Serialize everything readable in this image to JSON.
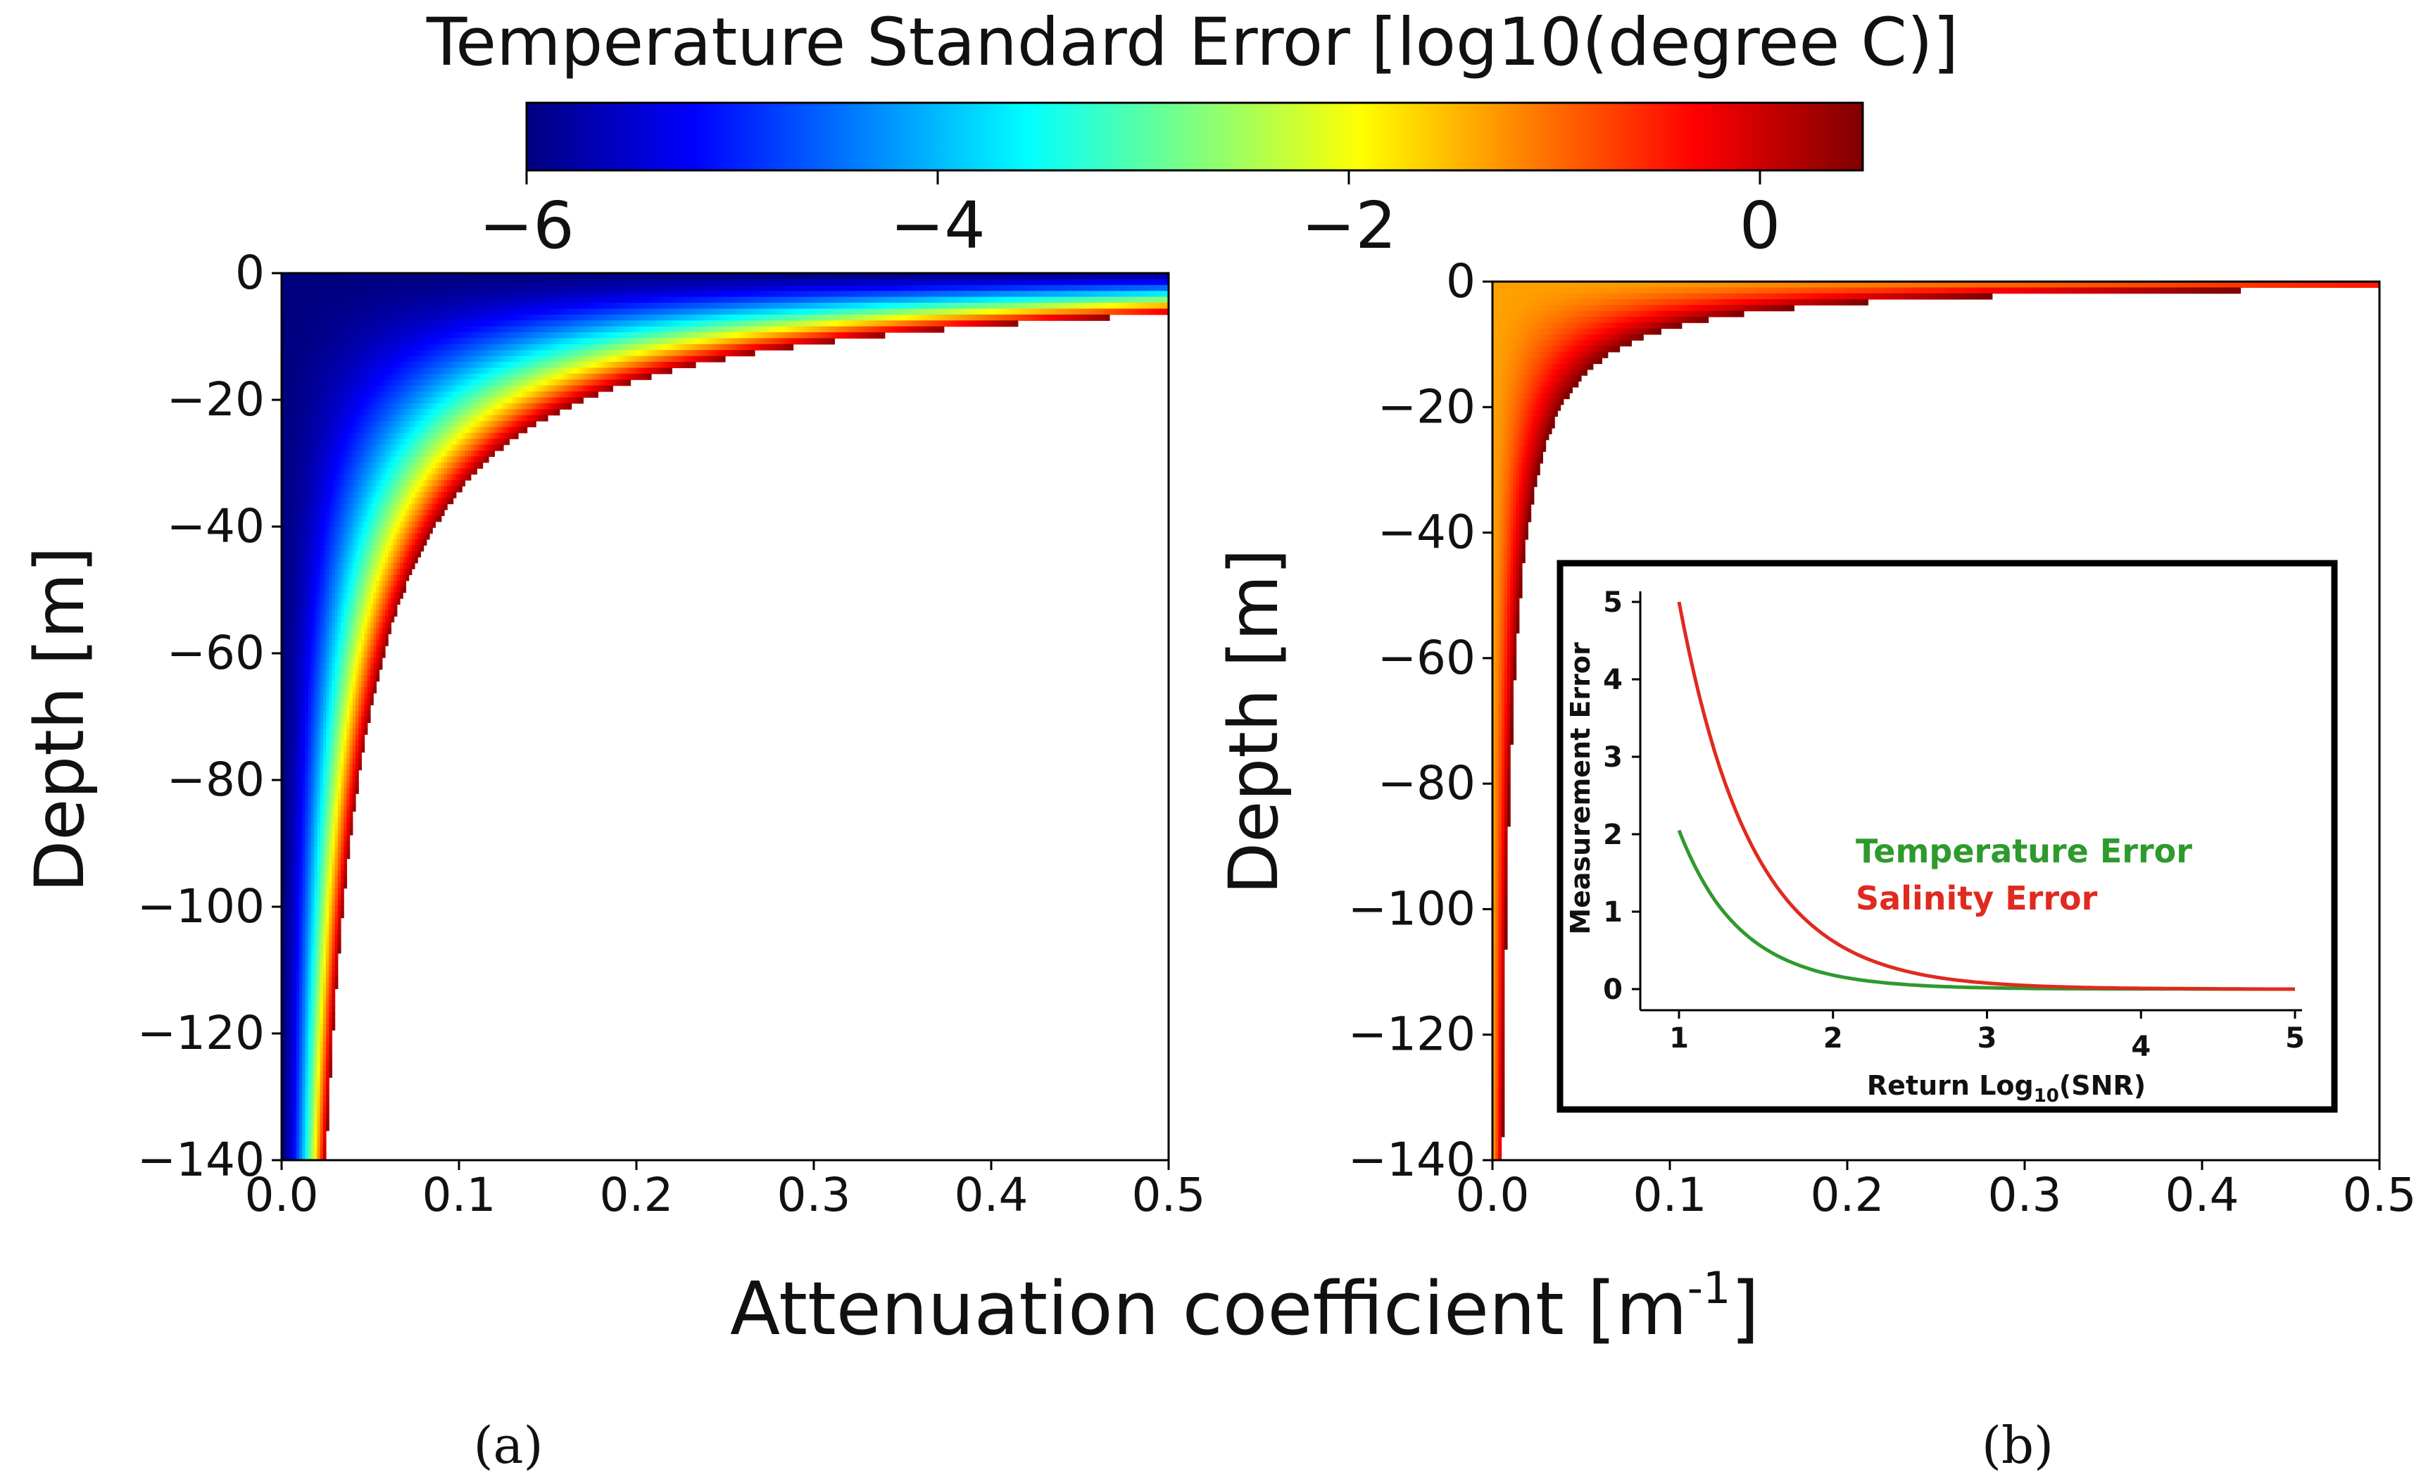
{
  "colors": {
    "temperature": "#2e9a2e",
    "salinity": "#e02a1f",
    "colormap": [
      "#00007f",
      "#0000ff",
      "#007fff",
      "#00ffff",
      "#7fff7f",
      "#ffff00",
      "#ff7f00",
      "#ff0000",
      "#7f0000"
    ]
  },
  "chart_data": [
    {
      "id": "colorbar",
      "type": "heatmap",
      "title": "Temperature Standard Error [log10(degree C)]",
      "range": [
        -6,
        0.5
      ],
      "ticks": [
        "−6",
        "−4",
        "−2",
        "0"
      ],
      "tick_values": [
        -6,
        -4,
        -2,
        0
      ]
    },
    {
      "id": "panel-a",
      "type": "heatmap",
      "panel_label": "(a)",
      "xlabel": "Attenuation coefficient [m",
      "xlabel_sup": "-1",
      "xlabel_end": "]",
      "ylabel": "Depth [m]",
      "xlim": [
        0,
        0.5
      ],
      "ylim": [
        -140,
        0
      ],
      "xticks": [
        "0.0",
        "0.1",
        "0.2",
        "0.3",
        "0.4",
        "0.5"
      ],
      "yticks": [
        "0",
        "−20",
        "−40",
        "−60",
        "−80",
        "−100",
        "−120",
        "−140"
      ],
      "boundary_depth_times_coefficient": 3.5,
      "description_values": "error rises from -6 near surface to about 0.5 at the depth limit where k*|z| = 3.5"
    },
    {
      "id": "panel-b",
      "type": "heatmap",
      "panel_label": "(b)",
      "ylabel": "Depth [m]",
      "xlim": [
        0,
        0.5
      ],
      "ylim": [
        -140,
        0
      ],
      "xticks": [
        "0.0",
        "0.1",
        "0.2",
        "0.3",
        "0.4",
        "0.5"
      ],
      "yticks": [
        "0",
        "−20",
        "−40",
        "−60",
        "−80",
        "−100",
        "−120",
        "−140"
      ],
      "boundary_depth_times_coefficient": 0.8
    },
    {
      "id": "inset",
      "type": "line",
      "xlabel": "Return Log",
      "xlabel_sub": "10",
      "xlabel_end": "(SNR)",
      "ylabel": "Measurement Error",
      "xlim": [
        1,
        5
      ],
      "ylim": [
        0,
        5
      ],
      "xticks": [
        "1",
        "2",
        "3",
        "4",
        "5"
      ],
      "yticks": [
        "0",
        "1",
        "2",
        "3",
        "4",
        "5"
      ],
      "series": [
        {
          "name": "Temperature Error",
          "x": [
            1.0,
            1.25,
            1.5,
            1.75,
            2.0,
            2.25,
            2.5,
            2.75,
            3.0,
            3.5,
            4.0,
            4.5,
            5.0
          ],
          "values": [
            2.05,
            1.1,
            0.6,
            0.33,
            0.18,
            0.1,
            0.055,
            0.03,
            0.017,
            0.005,
            0.002,
            0.001,
            0.0
          ]
        },
        {
          "name": "Salinity Error",
          "x": [
            1.0,
            1.25,
            1.5,
            1.75,
            2.0,
            2.25,
            2.5,
            2.75,
            3.0,
            3.5,
            4.0,
            4.5,
            5.0
          ],
          "values": [
            5.0,
            2.95,
            1.75,
            1.04,
            0.62,
            0.37,
            0.22,
            0.13,
            0.078,
            0.028,
            0.01,
            0.004,
            0.0
          ]
        }
      ]
    }
  ]
}
